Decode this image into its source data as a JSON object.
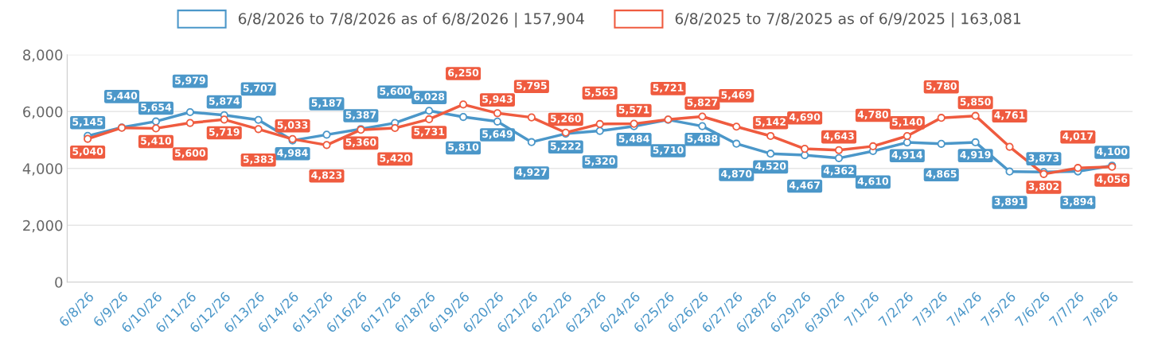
{
  "chart_data": {
    "type": "line",
    "categories": [
      "6/8/26",
      "6/9/26",
      "6/10/26",
      "6/11/26",
      "6/12/26",
      "6/13/26",
      "6/14/26",
      "6/15/26",
      "6/16/26",
      "6/17/26",
      "6/18/26",
      "6/19/26",
      "6/20/26",
      "6/21/26",
      "6/22/26",
      "6/23/26",
      "6/24/26",
      "6/25/26",
      "6/26/26",
      "6/27/26",
      "6/28/26",
      "6/29/26",
      "6/30/26",
      "7/1/26",
      "7/2/26",
      "7/3/26",
      "7/4/26",
      "7/5/26",
      "7/6/26",
      "7/7/26",
      "7/8/26"
    ],
    "series": [
      {
        "name": "6/8/2026 to 7/8/2026 as of 6/8/2026 | 157,904",
        "color": "#4b97c9",
        "values": [
          5145,
          5440,
          5654,
          5979,
          5874,
          5707,
          4984,
          5187,
          5387,
          5600,
          6028,
          5810,
          5649,
          4927,
          5222,
          5320,
          5484,
          5710,
          5488,
          4870,
          4520,
          4467,
          4362,
          4610,
          4914,
          4865,
          4919,
          3891,
          3873,
          3894,
          4100
        ],
        "value_labels": [
          "5,145",
          "5,440",
          "5,654",
          "5,979",
          "5,874",
          "5,707",
          "4,984",
          "5,187",
          "5,387",
          "5,600",
          "6,028",
          "5,810",
          "5,649",
          "4,927",
          "5,222",
          "5,320",
          "5,484",
          "5,710",
          "5,488",
          "4,870",
          "4,520",
          "4,467",
          "4,362",
          "4,610",
          "4,914",
          "4,865",
          "4,919",
          "3,891",
          "3,873",
          "3,894",
          "4,100"
        ]
      },
      {
        "name": "6/8/2025 to 7/8/2025 as of 6/9/2025 | 163,081",
        "color": "#ef5b3f",
        "values": [
          5040,
          5430,
          5410,
          5600,
          5719,
          5383,
          5033,
          4823,
          5360,
          5420,
          5731,
          6250,
          5943,
          5795,
          5260,
          5563,
          5571,
          5721,
          5827,
          5469,
          5142,
          4690,
          4643,
          4780,
          5140,
          5780,
          5850,
          4761,
          3802,
          4017,
          4056
        ],
        "value_labels": [
          "5,040",
          null,
          "5,410",
          "5,600",
          "5,719",
          "5,383",
          "5,033",
          "4,823",
          "5,360",
          "5,420",
          "5,731",
          "6,250",
          "5,943",
          "5,795",
          "5,260",
          "5,563",
          "5,571",
          "5,721",
          "5,827",
          "5,469",
          "5,142",
          "4,690",
          "4,643",
          "4,780",
          "5,140",
          "5,780",
          "5,850",
          "4,761",
          "3,802",
          "4,017",
          "4,056"
        ]
      }
    ],
    "ylim": [
      0,
      8000
    ],
    "yticks": [
      {
        "value": 0,
        "label": "0"
      },
      {
        "value": 2000,
        "label": "2,000"
      },
      {
        "value": 4000,
        "label": "4,000"
      },
      {
        "value": 6000,
        "label": "6,000"
      },
      {
        "value": 8000,
        "label": "8,000"
      }
    ],
    "grid": "y",
    "legend": "top",
    "marker": "circle",
    "line_style": "solid"
  }
}
